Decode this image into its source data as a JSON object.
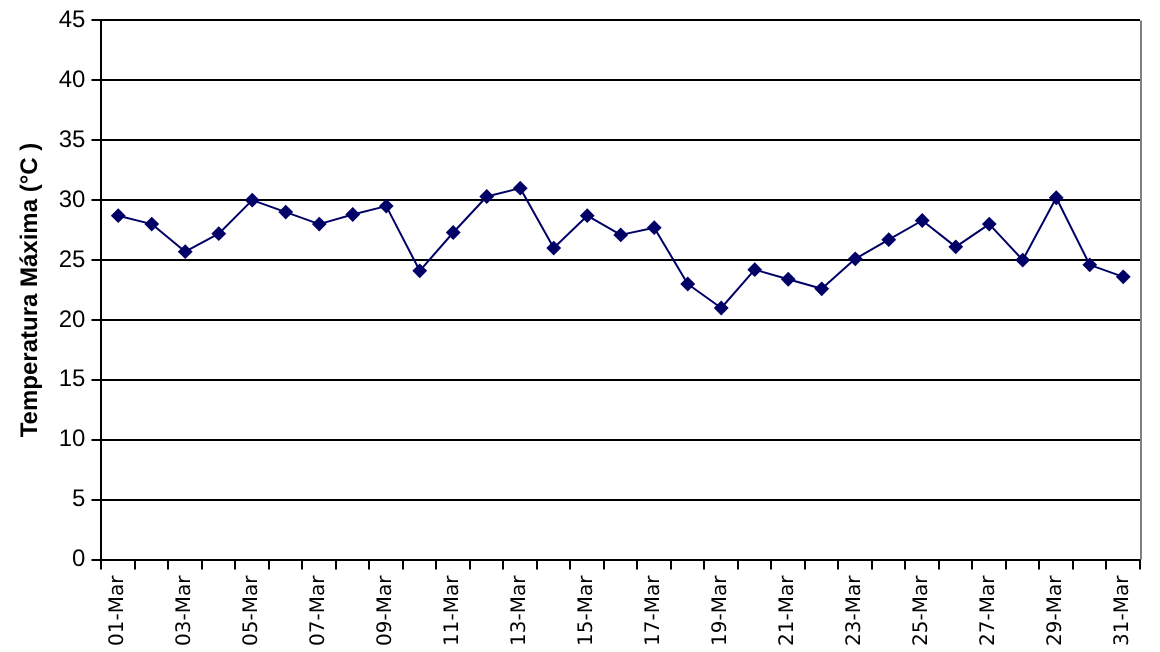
{
  "chart_data": {
    "type": "line",
    "ylabel": "Temperatura Máxima (°C )",
    "categories": [
      "01-Mar",
      null,
      "03-Mar",
      null,
      "05-Mar",
      null,
      "07-Mar",
      null,
      "09-Mar",
      null,
      "11-Mar",
      null,
      "13-Mar",
      null,
      "15-Mar",
      null,
      "17-Mar",
      null,
      "19-Mar",
      null,
      "21-Mar",
      null,
      "23-Mar",
      null,
      "25-Mar",
      null,
      "27-Mar",
      null,
      "29-Mar",
      null,
      "31-Mar"
    ],
    "series": [
      {
        "color": "#000066",
        "values": [
          28.7,
          28,
          25.7,
          27.2,
          30,
          29,
          28,
          28.8,
          29.5,
          24.1,
          27.3,
          30.3,
          31,
          26,
          28.7,
          27.1,
          27.7,
          23,
          21,
          24.2,
          23.4,
          22.6,
          25.1,
          26.7,
          28.3,
          26.1,
          28,
          25,
          30.2,
          24.6,
          23.6
        ]
      }
    ],
    "ylim": [
      0,
      45
    ],
    "yticks": [
      0,
      5,
      10,
      15,
      20,
      25,
      30,
      35,
      40,
      45
    ],
    "grid": "y",
    "legend": false,
    "marker": "diamond",
    "line_style": "solid"
  }
}
